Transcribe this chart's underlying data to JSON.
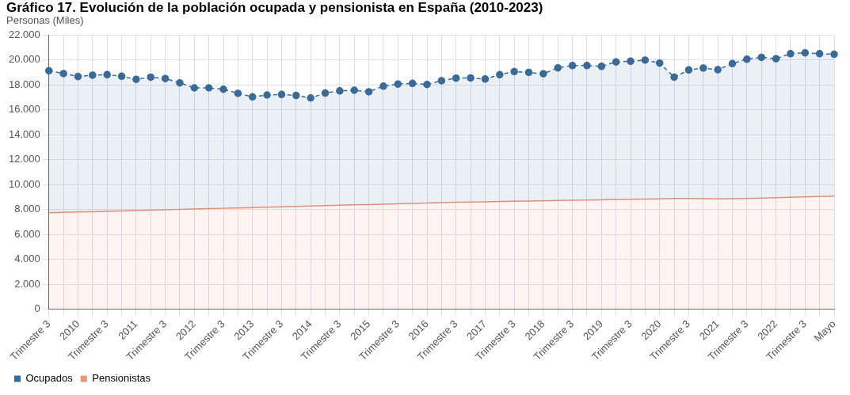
{
  "chart_data": {
    "type": "area",
    "title": "Gráfico 17. Evolución de la población ocupada y pensionista en España (2010-2023)",
    "ylabel": "Personas (Miles)",
    "categories": [
      "Trimestre 3",
      null,
      "2010",
      null,
      "Trimestre 3",
      null,
      "2011",
      null,
      "Trimestre 3",
      null,
      "2012",
      null,
      "Trimestre 3",
      null,
      "2013",
      null,
      "Trimestre 3",
      null,
      "2014",
      null,
      "Trimestre 3",
      null,
      "2015",
      null,
      "Trimestre 3",
      null,
      "2016",
      null,
      "Trimestre 3",
      null,
      "2017",
      null,
      "Trimestre 3",
      null,
      "2018",
      null,
      "Trimestre 3",
      null,
      "2019",
      null,
      "Trimestre 3",
      null,
      "2020",
      null,
      "Trimestre 3",
      null,
      "2021",
      null,
      "Trimestre 3",
      null,
      "2022",
      null,
      "Trimestre 3",
      null,
      "Mayo"
    ],
    "series": [
      {
        "name": "Ocupados",
        "color": "#3a6a98",
        "marker": "circle",
        "line_style": "dashed",
        "values": [
          19140,
          18920,
          18680,
          18790,
          18830,
          18700,
          18460,
          18630,
          18520,
          18170,
          17770,
          17770,
          17660,
          17330,
          17050,
          17200,
          17240,
          17160,
          16960,
          17350,
          17530,
          17580,
          17460,
          17910,
          18080,
          18130,
          18040,
          18350,
          18550,
          18570,
          18480,
          18830,
          19080,
          19010,
          18900,
          19380,
          19560,
          19560,
          19500,
          19850,
          19910,
          20000,
          19760,
          18630,
          19210,
          19360,
          19230,
          19720,
          20070,
          20220,
          20110,
          20510,
          20580,
          20510,
          20470
        ]
      },
      {
        "name": "Pensionistas",
        "color": "#e8937a",
        "marker": "none",
        "line_style": "solid",
        "values": [
          7750,
          7780,
          7810,
          7840,
          7870,
          7900,
          7930,
          7960,
          7990,
          8020,
          8050,
          8080,
          8110,
          8140,
          8170,
          8200,
          8230,
          8260,
          8290,
          8320,
          8350,
          8380,
          8410,
          8440,
          8470,
          8500,
          8530,
          8560,
          8590,
          8610,
          8630,
          8650,
          8670,
          8690,
          8710,
          8730,
          8750,
          8770,
          8790,
          8810,
          8830,
          8850,
          8870,
          8890,
          8900,
          8880,
          8870,
          8880,
          8900,
          8930,
          8960,
          8990,
          9020,
          9050,
          9080
        ]
      }
    ],
    "ylim": [
      0,
      22000
    ],
    "yticks": [
      {
        "value": 0,
        "label": "0"
      },
      {
        "value": 2000,
        "label": "2.000"
      },
      {
        "value": 4000,
        "label": "4.000"
      },
      {
        "value": 6000,
        "label": "6.000"
      },
      {
        "value": 8000,
        "label": "8.000"
      },
      {
        "value": 10000,
        "label": "10.000"
      },
      {
        "value": 12000,
        "label": "12.000"
      },
      {
        "value": 14000,
        "label": "14.000"
      },
      {
        "value": 16000,
        "label": "16.000"
      },
      {
        "value": 18000,
        "label": "18.000"
      },
      {
        "value": 20000,
        "label": "20.000"
      },
      {
        "value": 22000,
        "label": "22.000"
      }
    ],
    "grid": true,
    "legend": "bottom left"
  }
}
